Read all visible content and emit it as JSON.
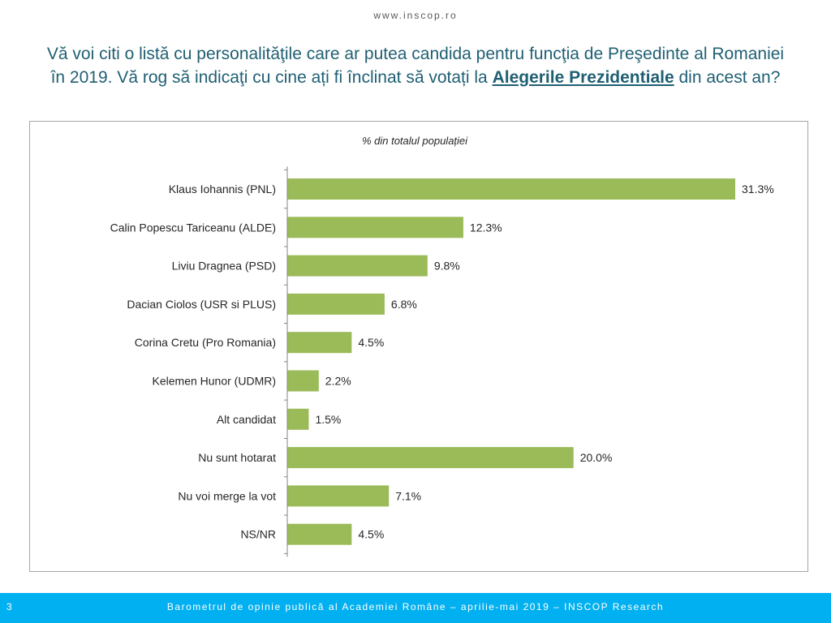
{
  "header": {
    "site_url": "www.inscop.ro"
  },
  "question": {
    "part1": "Vă voi citi o listă cu personalităţile care ar putea candida pentru funcţia de Preşedinte al Romaniei",
    "part2": "în 2019. Vă rog să indicaţi  cu cine ați fi înclinat să votați la ",
    "emphasis": "Alegerile Prezidentiale",
    "part3": " din acest an?"
  },
  "chart_data": {
    "type": "bar",
    "orientation": "horizontal",
    "title": "% din totalul populației",
    "categories": [
      "Klaus Iohannis (PNL)",
      "Calin Popescu Tariceanu (ALDE)",
      "Liviu Dragnea (PSD)",
      "Dacian Ciolos (USR si PLUS)",
      "Corina Cretu (Pro Romania)",
      "Kelemen Hunor (UDMR)",
      "Alt candidat",
      "Nu sunt hotarat",
      "Nu voi merge la vot",
      "NS/NR"
    ],
    "values": [
      31.3,
      12.3,
      9.8,
      6.8,
      4.5,
      2.2,
      1.5,
      20.0,
      7.1,
      4.5
    ],
    "value_labels": [
      "31.3%",
      "12.3%",
      "9.8%",
      "6.8%",
      "4.5%",
      "2.2%",
      "1.5%",
      "20.0%",
      "7.1%",
      "4.5%"
    ],
    "xlim": [
      0,
      31.3
    ],
    "bar_color": "#9bbb59",
    "grid": false,
    "legend": "none"
  },
  "footer": {
    "page_number": "3",
    "text": "Barometrul de opinie publică al Academiei Române – aprilie-mai 2019 – INSCOP Research",
    "color": "#00b0f0"
  },
  "colors": {
    "question_text": "#1f5f73",
    "bar": "#9bbb59"
  }
}
